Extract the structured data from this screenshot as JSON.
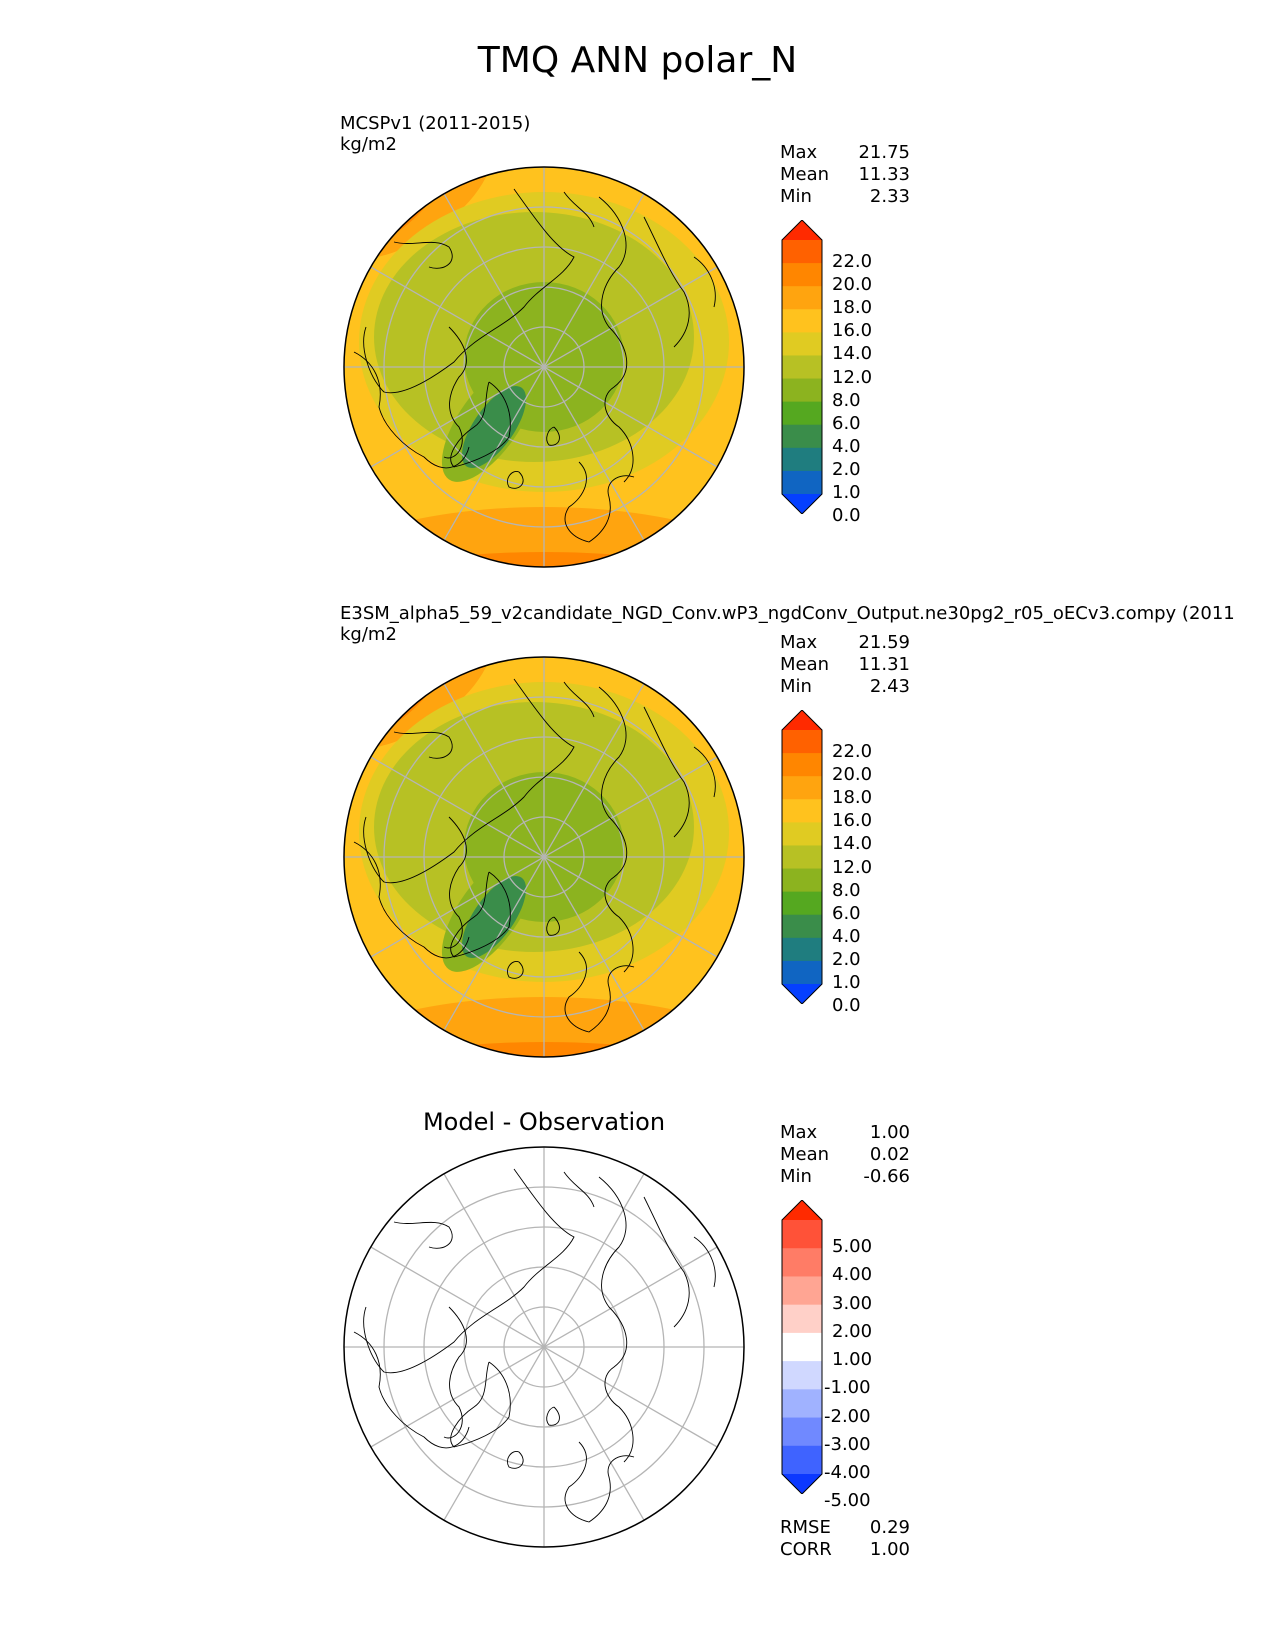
{
  "title": "TMQ ANN polar_N",
  "panels": [
    {
      "id": "test",
      "title": "MCSPv1 (2011-2015)",
      "units": "kg/m2",
      "stats": [
        {
          "label": "Max",
          "value": "21.75"
        },
        {
          "label": "Mean",
          "value": "11.33"
        },
        {
          "label": "Min",
          "value": "2.33"
        }
      ],
      "colorbar": {
        "labels": [
          "22.0",
          "20.0",
          "18.0",
          "16.0",
          "14.0",
          "12.0",
          "8.0",
          "6.0",
          "4.0",
          "2.0",
          "1.0",
          "0.0"
        ],
        "colors": [
          "#ff2a00",
          "#ff6100",
          "#ff8600",
          "#ffa40f",
          "#ffc21e",
          "#e0cb22",
          "#b7c124",
          "#8cb31f",
          "#55a820",
          "#3a8d4a",
          "#1f7d7f",
          "#1065c2",
          "#0540ff"
        ]
      }
    },
    {
      "id": "reference",
      "title": "E3SM_alpha5_59_v2candidate_NGD_Conv.wP3_ngdConv_Output.ne30pg2_r05_oECv3.compy (2011",
      "units": "kg/m2",
      "stats": [
        {
          "label": "Max",
          "value": "21.59"
        },
        {
          "label": "Mean",
          "value": "11.31"
        },
        {
          "label": "Min",
          "value": "2.43"
        }
      ],
      "colorbar": {
        "labels": [
          "22.0",
          "20.0",
          "18.0",
          "16.0",
          "14.0",
          "12.0",
          "8.0",
          "6.0",
          "4.0",
          "2.0",
          "1.0",
          "0.0"
        ],
        "colors": [
          "#ff2a00",
          "#ff6100",
          "#ff8600",
          "#ffa40f",
          "#ffc21e",
          "#e0cb22",
          "#b7c124",
          "#8cb31f",
          "#55a820",
          "#3a8d4a",
          "#1f7d7f",
          "#1065c2",
          "#0540ff"
        ]
      }
    },
    {
      "id": "difference",
      "title": "Model - Observation",
      "units": "",
      "stats": [
        {
          "label": "Max",
          "value": "1.00"
        },
        {
          "label": "Mean",
          "value": "0.02"
        },
        {
          "label": "Min",
          "value": "-0.66"
        }
      ],
      "extra_stats": [
        {
          "label": "RMSE",
          "value": "0.29"
        },
        {
          "label": "CORR",
          "value": "1.00"
        }
      ],
      "colorbar": {
        "labels": [
          "5.00",
          "4.00",
          "3.00",
          "2.00",
          "1.00",
          "-1.00",
          "-2.00",
          "-3.00",
          "-4.00",
          "-5.00"
        ],
        "colors": [
          "#ff2a00",
          "#ff5238",
          "#ff7c66",
          "#ffa593",
          "#ffd0c8",
          "#ffffff",
          "#d0d8ff",
          "#a0b2ff",
          "#7089ff",
          "#3f63ff",
          "#0c38ff"
        ]
      }
    }
  ],
  "map": {
    "projection": "north polar stereographic",
    "grid_color": "#b5b5b5",
    "coast_color": "#000000"
  }
}
